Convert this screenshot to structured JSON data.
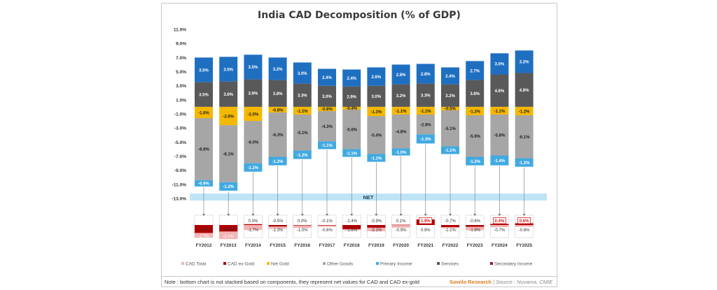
{
  "chart_data": {
    "type": "bar",
    "title": "India CAD Decomposition (% of GDP)",
    "ylim": [
      -13.0,
      11.0
    ],
    "y_ticks": [
      "11.0%",
      "9.0%",
      "7.0%",
      "5.0%",
      "3.0%",
      "1.0%",
      "-1.0%",
      "-3.0%",
      "-5.0%",
      "-7.0%",
      "-9.0%",
      "-11.0%",
      "-13.0%"
    ],
    "categories": [
      "FY2012",
      "FY2013",
      "FY2014",
      "FY2015",
      "FY2016",
      "FY2017",
      "FY2018",
      "FY2019",
      "FY2020",
      "FY2021",
      "FY2022",
      "FY2023",
      "FY2024",
      "FY2025"
    ],
    "series": [
      {
        "name": "Services",
        "values": [
          3.5,
          3.6,
          3.9,
          3.8,
          3.3,
          3.0,
          2.9,
          3.0,
          3.2,
          3.3,
          3.2,
          3.8,
          4.6,
          4.8
        ],
        "labels": [
          "3.5%",
          "3.6%",
          "3.9%",
          "3.8%",
          "3.3%",
          "3.0%",
          "2.9%",
          "3.0%",
          "3.2%",
          "3.3%",
          "3.2%",
          "3.8%",
          "4.6%",
          "4.8%"
        ]
      },
      {
        "name": "Secondary Income",
        "values": [
          3.5,
          3.5,
          3.5,
          3.2,
          3.0,
          2.4,
          2.4,
          2.6,
          2.8,
          2.8,
          2.4,
          2.7,
          3.0,
          3.2
        ],
        "labels": [
          "3.5%",
          "3.5%",
          "3.5%",
          "3.2%",
          "3.0%",
          "2.4%",
          "2.4%",
          "2.6%",
          "2.8%",
          "2.8%",
          "2.4%",
          "2.7%",
          "3.0%",
          "3.2%"
        ]
      },
      {
        "name": "Net Gold",
        "values": [
          -1.6,
          -2.6,
          -2.0,
          -0.8,
          -1.1,
          -0.6,
          -0.4,
          -1.3,
          -1.1,
          -1.1,
          -0.5,
          -1.2,
          -1.1,
          -1.2
        ],
        "labels": [
          "-1.6%",
          "-2.6%",
          "-2.0%",
          "-0.8%",
          "-1.1%",
          "-0.6%",
          "-0.4%",
          "-1.3%",
          "-1.1%",
          "-1.1%",
          "-0.5%",
          "-1.2%",
          "-1.1%",
          "-1.2%"
        ]
      },
      {
        "name": "Other Goods",
        "values": [
          -8.8,
          -8.1,
          -6.0,
          -6.3,
          -5.1,
          -4.3,
          -5.6,
          -5.4,
          -4.8,
          -2.8,
          -5.1,
          -5.9,
          -5.8,
          -6.1
        ],
        "labels": [
          "-8.8%",
          "-8.1%",
          "-6.0%",
          "-6.3%",
          "-5.1%",
          "-4.3%",
          "-5.6%",
          "-5.4%",
          "-4.8%",
          "-2.8%",
          "-5.1%",
          "-5.9%",
          "-5.8%",
          "-6.1%"
        ]
      },
      {
        "name": "Primary Income",
        "values": [
          -0.9,
          -1.2,
          -1.2,
          -1.2,
          -1.2,
          -1.1,
          -1.1,
          -1.1,
          -1.0,
          -1.3,
          -1.1,
          -1.2,
          -1.4,
          -1.2
        ],
        "labels": [
          "-0.9%",
          "-1.2%",
          "-1.2%",
          "-1.2%",
          "-1.2%",
          "-1.1%",
          "-1.1%",
          "-1.1%",
          "-1.0%",
          "-1.3%",
          "-1.1%",
          "-1.2%",
          "-1.4%",
          "-1.2%"
        ]
      },
      {
        "name": "CAD Total",
        "values": [
          -4.3,
          -4.8,
          -1.7,
          -1.3,
          -1.0,
          -0.6,
          -1.8,
          -2.1,
          -0.9,
          0.9,
          -1.1,
          -1.8,
          -0.7,
          -0.6
        ],
        "labels": [
          "-4.3%",
          "-4.8%",
          "-1.7%",
          "-1.3%",
          "-1.0%",
          "-0.6%",
          "-1.8%",
          "-2.1%",
          "-0.9%",
          "0.9%",
          "-1.1%",
          "-1.8%",
          "-0.7%",
          "-0.6%"
        ]
      },
      {
        "name": "CAD ex-Gold",
        "values": [
          -2.7,
          -2.2,
          0.3,
          -0.5,
          0.0,
          -0.1,
          -1.4,
          -0.9,
          0.1,
          1.9,
          -0.7,
          -0.6,
          0.4,
          0.6
        ],
        "labels": [
          "-2.7%",
          "-2.2%",
          "0.3%",
          "-0.5%",
          "0.0%",
          "-0.1%",
          "-1.4%",
          "-0.9%",
          "0.1%",
          "1.9%",
          "-0.7%",
          "-0.6%",
          "0.4%",
          "0.6%"
        ]
      }
    ],
    "net_band_label": "NET",
    "legend_position": "bottom",
    "legend": [
      "CAD Total",
      "CAD ex-Gold",
      "Net Gold",
      "Other Goods",
      "Primary Income",
      "Services",
      "Secondary Income"
    ],
    "colors": {
      "Services": "#595959",
      "Secondary Income": "#1f6fc1",
      "Net Gold": "#f5b800",
      "Other Goods": "#a6a6a6",
      "Primary Income": "#41a9e1",
      "CAD Total": "#f4b4b4",
      "CAD ex-Gold": "#b00000",
      "Secondary Income Legend": "#8b1a4a",
      "Net Band": "#bfe4f6",
      "Highlight Box": "#d42020"
    }
  },
  "footer": {
    "note": "Note : bottom chart is not stacked based on components, they represent net values for CAD and CAD ex-gold",
    "brand": "Sowilo Research",
    "source": " | Source : Nuvama, CMIE"
  }
}
